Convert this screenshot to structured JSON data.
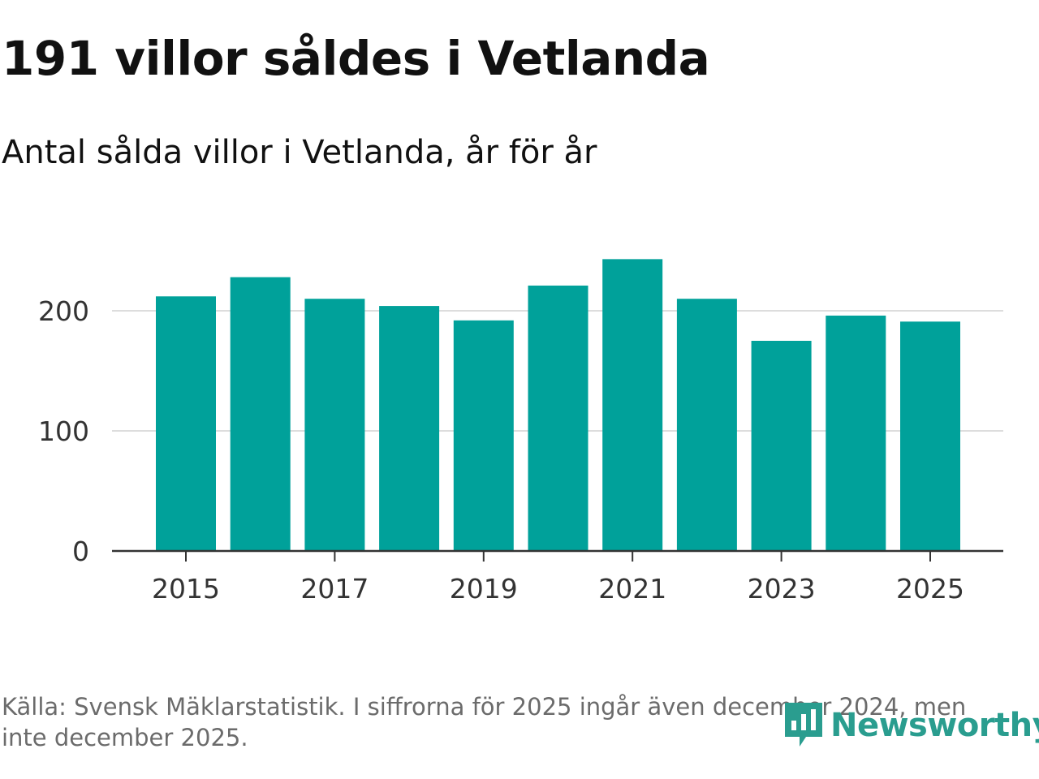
{
  "header": {
    "title": "191 villor såldes i Vetlanda",
    "subtitle": "Antal sålda villor i Vetlanda, år för år"
  },
  "footer": {
    "source": "Källa: Svensk Mäklarstatistik. I siffrorna för 2025 ingår även december 2024, men inte december 2025.",
    "brand": "Newsworthy"
  },
  "colors": {
    "bar": "#00a19a",
    "grid": "#dddddd",
    "axis": "#333333",
    "brand": "#2a9d8f"
  },
  "chart_data": {
    "type": "bar",
    "title": "Antal sålda villor i Vetlanda, år för år",
    "xlabel": "",
    "ylabel": "",
    "categories": [
      "2015",
      "2016",
      "2017",
      "2018",
      "2019",
      "2020",
      "2021",
      "2022",
      "2023",
      "2024",
      "2025"
    ],
    "values": [
      212,
      228,
      210,
      204,
      192,
      221,
      243,
      210,
      175,
      196,
      191
    ],
    "x_tick_labels": [
      "2015",
      "2017",
      "2019",
      "2021",
      "2023",
      "2025"
    ],
    "y_ticks": [
      0,
      100,
      200
    ],
    "ylim": [
      0,
      250
    ],
    "grid": true,
    "legend": "none"
  }
}
